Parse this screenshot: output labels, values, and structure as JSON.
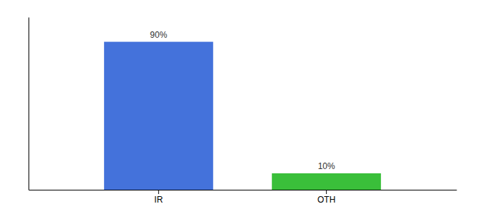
{
  "chart_data": {
    "type": "bar",
    "categories": [
      "IR",
      "OTH"
    ],
    "values": [
      90,
      10
    ],
    "value_labels": [
      "90%",
      "10%"
    ],
    "data_labels": true,
    "colors": [
      "#4472db",
      "#3abf3a"
    ],
    "ylim": [
      0,
      105
    ],
    "grid": false,
    "tick_labels": "x"
  }
}
